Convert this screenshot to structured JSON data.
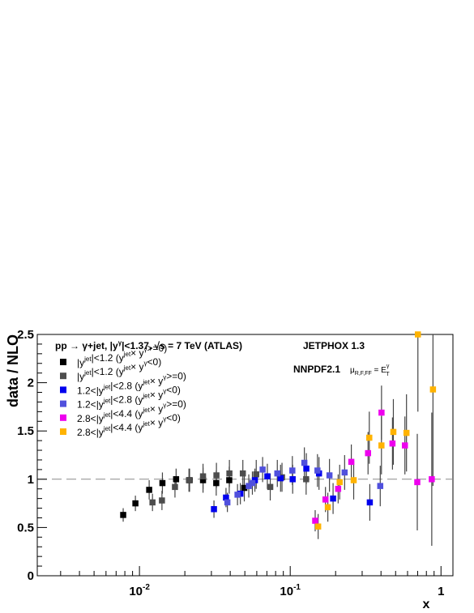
{
  "chart_data": {
    "type": "scatter",
    "title": "pp → γ+jet, |y^γ|<1.37, √s = 7 TeV (ATLAS)",
    "xlabel": "x",
    "ylabel": "data / NLO",
    "x_scale": "log",
    "xlim": [
      0.0021,
      1.2
    ],
    "ylim": [
      0,
      2.5
    ],
    "x_ticks": [
      "10^-2",
      "10^-1",
      "1"
    ],
    "y_ticks": [
      "0",
      "0.5",
      "1",
      "1.5",
      "2",
      "2.5"
    ],
    "reference_line": 1,
    "annotations": [
      "JETPHOX 1.3",
      "NNPDF2.1",
      "μ_R,F,FF = E_T^γ"
    ],
    "legend_position": "top-left",
    "series": [
      {
        "name": "|y^jet|<1.2 (y^jet× y^γ>=0)",
        "color": "#000000",
        "points": [
          {
            "x": 0.0078,
            "y": 0.63,
            "err": 0.07
          },
          {
            "x": 0.0094,
            "y": 0.75,
            "err": 0.08
          },
          {
            "x": 0.0116,
            "y": 0.89,
            "err": 0.1
          },
          {
            "x": 0.0142,
            "y": 0.96,
            "err": 0.11
          },
          {
            "x": 0.0175,
            "y": 1.0,
            "err": 0.11
          },
          {
            "x": 0.0215,
            "y": 0.99,
            "err": 0.12
          },
          {
            "x": 0.0264,
            "y": 0.99,
            "err": 0.13
          },
          {
            "x": 0.0323,
            "y": 0.96,
            "err": 0.13
          },
          {
            "x": 0.0394,
            "y": 0.99,
            "err": 0.14
          },
          {
            "x": 0.0496,
            "y": 0.91,
            "err": 0.14
          }
        ]
      },
      {
        "name": "|y^jet|<1.2 (y^jet× y^γ<0)",
        "color": "#4d4d4d",
        "points": [
          {
            "x": 0.0122,
            "y": 0.76,
            "err": 0.09
          },
          {
            "x": 0.0141,
            "y": 0.78,
            "err": 0.1
          },
          {
            "x": 0.0172,
            "y": 0.92,
            "err": 0.11
          },
          {
            "x": 0.0213,
            "y": 0.99,
            "err": 0.12
          },
          {
            "x": 0.0264,
            "y": 1.03,
            "err": 0.13
          },
          {
            "x": 0.0324,
            "y": 1.04,
            "err": 0.13
          },
          {
            "x": 0.0395,
            "y": 1.06,
            "err": 0.14
          },
          {
            "x": 0.0485,
            "y": 1.06,
            "err": 0.14
          },
          {
            "x": 0.0595,
            "y": 1.05,
            "err": 0.15
          },
          {
            "x": 0.0737,
            "y": 0.92,
            "err": 0.14
          },
          {
            "x": 0.0882,
            "y": 1.02,
            "err": 0.15
          },
          {
            "x": 0.1275,
            "y": 1.0,
            "err": 0.16
          }
        ]
      },
      {
        "name": "1.2<|y^jet|<2.8 (y^jet× y^γ>=0)",
        "color": "#0000ee",
        "points": [
          {
            "x": 0.0312,
            "y": 0.69,
            "err": 0.09
          },
          {
            "x": 0.0375,
            "y": 0.81,
            "err": 0.1
          },
          {
            "x": 0.0467,
            "y": 0.85,
            "err": 0.11
          },
          {
            "x": 0.0583,
            "y": 0.99,
            "err": 0.12
          },
          {
            "x": 0.0705,
            "y": 1.03,
            "err": 0.13
          },
          {
            "x": 0.0863,
            "y": 1.01,
            "err": 0.14
          },
          {
            "x": 0.1038,
            "y": 1.0,
            "err": 0.15
          },
          {
            "x": 0.1279,
            "y": 1.11,
            "err": 0.16
          },
          {
            "x": 0.1552,
            "y": 1.06,
            "err": 0.17
          },
          {
            "x": 0.1924,
            "y": 0.8,
            "err": 0.16
          },
          {
            "x": 0.3372,
            "y": 0.76,
            "err": 0.19
          }
        ]
      },
      {
        "name": "1.2<|y^jet|<2.8 (y^jet× y^γ<0)",
        "color": "#5050dd",
        "points": [
          {
            "x": 0.0383,
            "y": 0.76,
            "err": 0.1
          },
          {
            "x": 0.0447,
            "y": 0.84,
            "err": 0.11
          },
          {
            "x": 0.0531,
            "y": 0.93,
            "err": 0.12
          },
          {
            "x": 0.0561,
            "y": 0.96,
            "err": 0.12
          },
          {
            "x": 0.0656,
            "y": 1.1,
            "err": 0.13
          },
          {
            "x": 0.0821,
            "y": 1.06,
            "err": 0.14
          },
          {
            "x": 0.1033,
            "y": 1.09,
            "err": 0.15
          },
          {
            "x": 0.1241,
            "y": 1.17,
            "err": 0.16
          },
          {
            "x": 0.1516,
            "y": 1.09,
            "err": 0.17
          },
          {
            "x": 0.1821,
            "y": 1.04,
            "err": 0.17
          },
          {
            "x": 0.2295,
            "y": 1.07,
            "err": 0.18
          },
          {
            "x": 0.3954,
            "y": 0.93,
            "err": 0.21
          }
        ]
      },
      {
        "name": "2.8<|y^jet|<4.4 (y^jet× y^γ>=0)",
        "color": "#ee00ee",
        "points": [
          {
            "x": 0.1464,
            "y": 0.57,
            "err": 0.11
          },
          {
            "x": 0.1713,
            "y": 0.79,
            "err": 0.13
          },
          {
            "x": 0.2079,
            "y": 0.9,
            "err": 0.15
          },
          {
            "x": 0.2542,
            "y": 1.18,
            "err": 0.18
          },
          {
            "x": 0.3282,
            "y": 1.27,
            "err": 0.22
          },
          {
            "x": 0.4032,
            "y": 1.69,
            "err": 0.28
          },
          {
            "x": 0.4766,
            "y": 1.37,
            "err": 0.27
          },
          {
            "x": 0.5763,
            "y": 1.35,
            "err": 0.3
          },
          {
            "x": 0.6962,
            "y": 0.97,
            "err": 0.5
          },
          {
            "x": 0.8685,
            "y": 1.0,
            "err": 0.69
          }
        ]
      },
      {
        "name": "2.8<|y^jet|<4.4 (y^jet× y^γ<0)",
        "color": "#ffb300",
        "points": [
          {
            "x": 0.1532,
            "y": 0.51,
            "err": 0.13
          },
          {
            "x": 0.1776,
            "y": 0.71,
            "err": 0.15
          },
          {
            "x": 0.2128,
            "y": 0.97,
            "err": 0.18
          },
          {
            "x": 0.2636,
            "y": 0.99,
            "err": 0.2
          },
          {
            "x": 0.3345,
            "y": 1.43,
            "err": 0.27
          },
          {
            "x": 0.4028,
            "y": 1.35,
            "err": 0.3
          },
          {
            "x": 0.4831,
            "y": 1.49,
            "err": 0.34
          },
          {
            "x": 0.5904,
            "y": 1.48,
            "err": 0.4
          },
          {
            "x": 0.7027,
            "y": 2.5,
            "err": 0.8
          },
          {
            "x": 0.8847,
            "y": 1.93,
            "err": 1.0
          }
        ]
      }
    ]
  }
}
